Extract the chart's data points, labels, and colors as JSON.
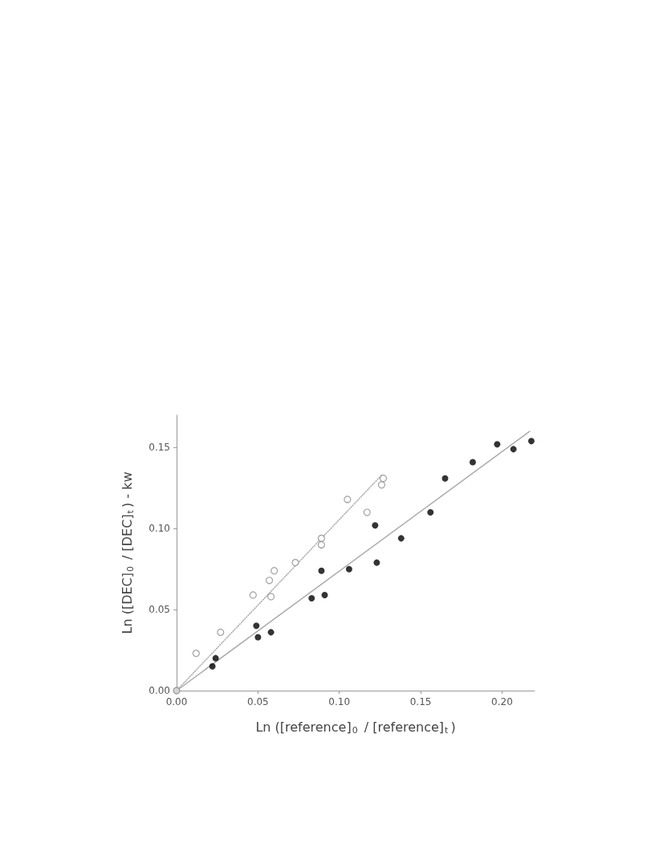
{
  "chart_data": {
    "type": "scatter",
    "xlabel": "Ln ([reference]$_{0}$ / [reference]$_{t}$)",
    "ylabel": "Ln ([DEC]$_{0}$ / [DEC]$_{t}$) - kw",
    "xlim": [
      0,
      0.22
    ],
    "ylim": [
      0,
      0.17
    ],
    "xticks": [
      {
        "value": 0,
        "label": "0.00"
      },
      {
        "value": 0.05,
        "label": "0.05"
      },
      {
        "value": 0.1,
        "label": "0.10"
      },
      {
        "value": 0.15,
        "label": "0.15"
      },
      {
        "value": 0.2,
        "label": "0.20"
      }
    ],
    "yticks": [
      {
        "value": 0,
        "label": "0.00"
      },
      {
        "value": 0.05,
        "label": "0.05"
      },
      {
        "value": 0.1,
        "label": "0.10"
      },
      {
        "value": 0.15,
        "label": "0.15"
      }
    ],
    "grid": false,
    "marker": "circle",
    "series": [
      {
        "type": "line",
        "color": "#aaaaaa",
        "line_style": "solid",
        "marker": "none",
        "x": [
          0,
          0.217
        ],
        "values": [
          0,
          0.16
        ]
      },
      {
        "type": "line",
        "color": "#aaaaaa",
        "line_style": "dotted",
        "marker": "none",
        "x": [
          0,
          0.126
        ],
        "values": [
          0,
          0.133
        ]
      },
      {
        "color": "#000000",
        "x": [
          0,
          0.022,
          0.024,
          0.049,
          0.05,
          0.058,
          0.083,
          0.089,
          0.091,
          0.106,
          0.122,
          0.123,
          0.138,
          0.156,
          0.165,
          0.182,
          0.197,
          0.207,
          0.218
        ],
        "values": [
          0,
          0.015,
          0.02,
          0.04,
          0.033,
          0.036,
          0.057,
          0.074,
          0.059,
          0.075,
          0.102,
          0.079,
          0.094,
          0.11,
          0.131,
          0.141,
          0.152,
          0.149,
          0.154
        ]
      },
      {
        "color": "#888888",
        "x": [
          0,
          0.012,
          0.027,
          0.047,
          0.057,
          0.058,
          0.06,
          0.073,
          0.089,
          0.089,
          0.105,
          0.117,
          0.126,
          0.127
        ],
        "values": [
          0,
          0.023,
          0.036,
          0.059,
          0.068,
          0.058,
          0.074,
          0.079,
          0.094,
          0.09,
          0.118,
          0.11,
          0.127,
          0.131
        ]
      }
    ]
  }
}
